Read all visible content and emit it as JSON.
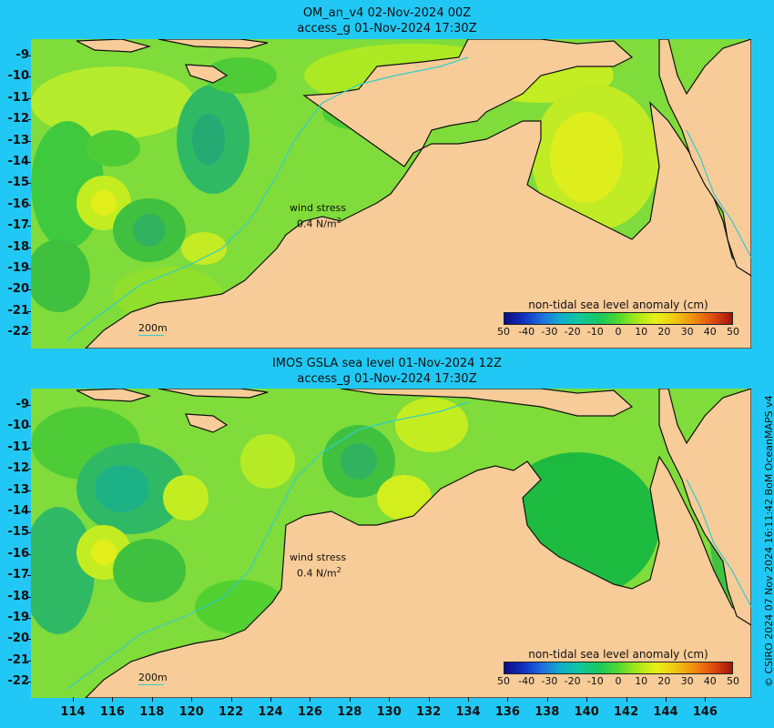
{
  "panels": [
    {
      "title_line1": "OM_an_v4  02-Nov-2024 00Z",
      "title_line2": "access_g 01-Nov-2024 17:30Z",
      "wind_label": "wind stress",
      "wind_value": "0.4 N/m",
      "wind_exp": "2",
      "scale_label": "200m",
      "legend_title": "non-tidal sea level anomaly (cm)"
    },
    {
      "title_line1": "IMOS GSLA sea level  01-Nov-2024 12Z",
      "title_line2": "access_g 01-Nov-2024 17:30Z",
      "wind_label": "wind stress",
      "wind_value": "0.4 N/m",
      "wind_exp": "2",
      "scale_label": "200m",
      "legend_title": "non-tidal sea level anomaly (cm)"
    }
  ],
  "legend_ticks": [
    "50",
    "-40",
    "-30",
    "-20",
    "-10",
    "0",
    "10",
    "20",
    "30",
    "40",
    "50"
  ],
  "y_ticks": [
    "-9",
    "-10",
    "-11",
    "-12",
    "-13",
    "-14",
    "-15",
    "-16",
    "-17",
    "-18",
    "-19",
    "-20",
    "-21",
    "-22"
  ],
  "x_ticks": [
    "114",
    "116",
    "118",
    "120",
    "122",
    "124",
    "126",
    "128",
    "130",
    "132",
    "134",
    "136",
    "138",
    "140",
    "142",
    "144",
    "146"
  ],
  "credit": "© CSIRO 2024   07 Nov 2024 16:11:42 BoM OceanMAPS v4",
  "colors": {
    "background": "#22c8f5",
    "land": "#f8cc98",
    "ocean_base": "#7fdc3a",
    "contour_200m": "#33cccc"
  }
}
